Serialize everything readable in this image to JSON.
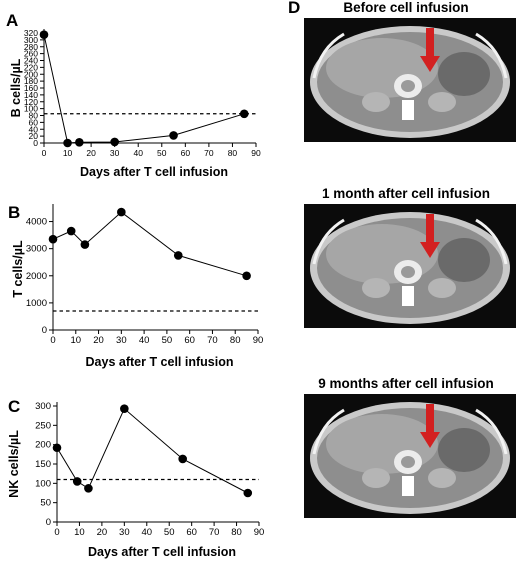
{
  "chart_data": [
    {
      "panel": "A",
      "type": "line",
      "xlabel": "Days after T cell infusion",
      "ylabel": "B cells/µL",
      "x": [
        0,
        10,
        15,
        30,
        55,
        85
      ],
      "values": [
        315,
        0,
        2,
        3,
        22,
        85
      ],
      "xlim": [
        0,
        90
      ],
      "ylim": [
        0,
        320
      ],
      "xticks": [
        0,
        10,
        20,
        30,
        40,
        50,
        60,
        70,
        80,
        90
      ],
      "yticks": [
        0,
        20,
        40,
        60,
        80,
        100,
        120,
        140,
        160,
        180,
        200,
        220,
        240,
        260,
        280,
        300,
        320
      ],
      "reference_line": 85
    },
    {
      "panel": "B",
      "type": "line",
      "xlabel": "Days after T cell infusion",
      "ylabel": "T cells/µL",
      "x": [
        0,
        8,
        14,
        30,
        55,
        85
      ],
      "values": [
        3350,
        3650,
        3150,
        4350,
        2750,
        2000
      ],
      "xlim": [
        0,
        90
      ],
      "ylim": [
        0,
        4500
      ],
      "xticks": [
        0,
        10,
        20,
        30,
        40,
        50,
        60,
        70,
        80,
        90
      ],
      "yticks": [
        0,
        1000,
        2000,
        3000,
        4000
      ],
      "reference_line": 700
    },
    {
      "panel": "C",
      "type": "line",
      "xlabel": "Days after T cell infusion",
      "ylabel": "NK cells/µL",
      "x": [
        0,
        9,
        14,
        30,
        56,
        85
      ],
      "values": [
        192,
        105,
        87,
        293,
        163,
        75
      ],
      "xlim": [
        0,
        90
      ],
      "ylim": [
        0,
        300
      ],
      "xticks": [
        0,
        10,
        20,
        30,
        40,
        50,
        60,
        70,
        80,
        90
      ],
      "yticks": [
        0,
        50,
        100,
        150,
        200,
        250,
        300
      ],
      "reference_line": 110
    }
  ],
  "panel_d": {
    "label": "D",
    "scans": [
      {
        "title": "Before cell infusion"
      },
      {
        "title": "1 month after cell infusion"
      },
      {
        "title": "9 months after cell infusion"
      }
    ],
    "arrow_color": "#d32020"
  },
  "style": {
    "line_color": "#000000",
    "marker_color": "#000000"
  }
}
